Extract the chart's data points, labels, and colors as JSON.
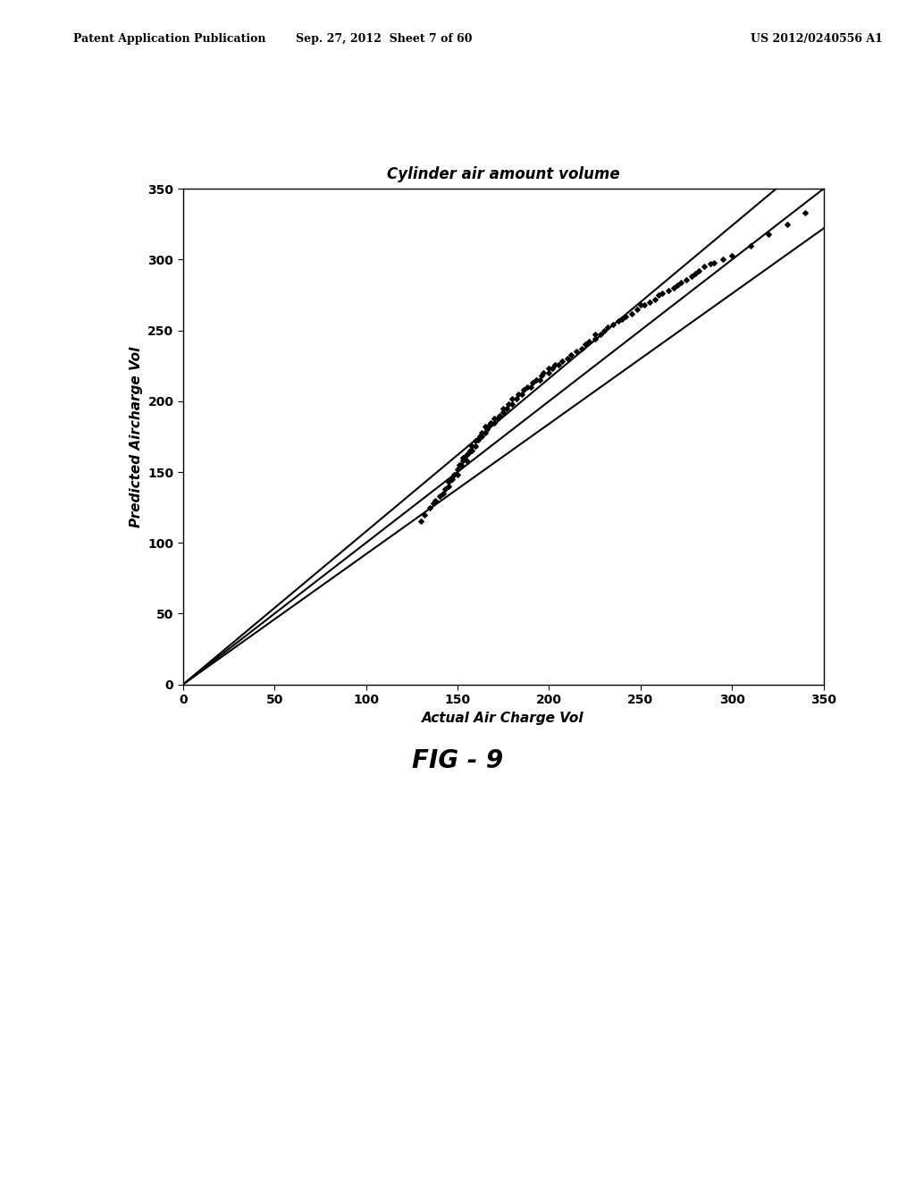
{
  "title": "Cylinder air amount volume",
  "xlabel": "Actual Air Charge Vol",
  "ylabel": "Predicted Aircharge Vol",
  "xlim": [
    0,
    350
  ],
  "ylim": [
    0,
    350
  ],
  "xticks": [
    0,
    50,
    100,
    150,
    200,
    250,
    300,
    350
  ],
  "yticks": [
    0,
    50,
    100,
    150,
    200,
    250,
    300,
    350
  ],
  "fig_caption": "FIG - 9",
  "header_left": "Patent Application Publication",
  "header_mid": "Sep. 27, 2012  Sheet 7 of 60",
  "header_right": "US 2012/0240556 A1",
  "background": "#ffffff",
  "line1_slope": 1.0,
  "line1_intercept": 0.0,
  "line2_slope": 0.92,
  "line2_intercept": 0.0,
  "line3_slope": 1.08,
  "line3_intercept": 0.0,
  "scatter_x": [
    130,
    132,
    135,
    137,
    138,
    140,
    142,
    143,
    145,
    145,
    147,
    148,
    150,
    150,
    151,
    152,
    153,
    153,
    155,
    155,
    156,
    157,
    158,
    158,
    160,
    160,
    161,
    162,
    163,
    163,
    165,
    165,
    166,
    167,
    168,
    170,
    170,
    172,
    173,
    175,
    175,
    177,
    178,
    180,
    180,
    182,
    183,
    185,
    186,
    188,
    190,
    191,
    193,
    195,
    196,
    197,
    200,
    200,
    202,
    203,
    205,
    207,
    210,
    212,
    215,
    218,
    220,
    222,
    225,
    225,
    228,
    230,
    232,
    235,
    238,
    240,
    242,
    245,
    248,
    250,
    252,
    255,
    258,
    260,
    262,
    265,
    268,
    270,
    272,
    275,
    278,
    280,
    282,
    285,
    288,
    290,
    295,
    300,
    310,
    320,
    330,
    340
  ],
  "scatter_y": [
    115,
    120,
    125,
    128,
    130,
    133,
    135,
    138,
    140,
    143,
    145,
    148,
    148,
    152,
    155,
    155,
    158,
    160,
    158,
    162,
    163,
    165,
    165,
    168,
    168,
    172,
    173,
    175,
    175,
    178,
    178,
    182,
    180,
    183,
    185,
    185,
    188,
    188,
    190,
    192,
    195,
    195,
    198,
    198,
    202,
    202,
    205,
    205,
    208,
    210,
    210,
    213,
    215,
    215,
    218,
    220,
    220,
    223,
    223,
    226,
    226,
    228,
    230,
    233,
    235,
    237,
    240,
    242,
    244,
    247,
    247,
    250,
    252,
    254,
    257,
    258,
    260,
    262,
    265,
    268,
    268,
    270,
    272,
    275,
    276,
    278,
    280,
    282,
    284,
    286,
    288,
    290,
    292,
    295,
    297,
    298,
    300,
    303,
    310,
    318,
    325,
    333
  ]
}
